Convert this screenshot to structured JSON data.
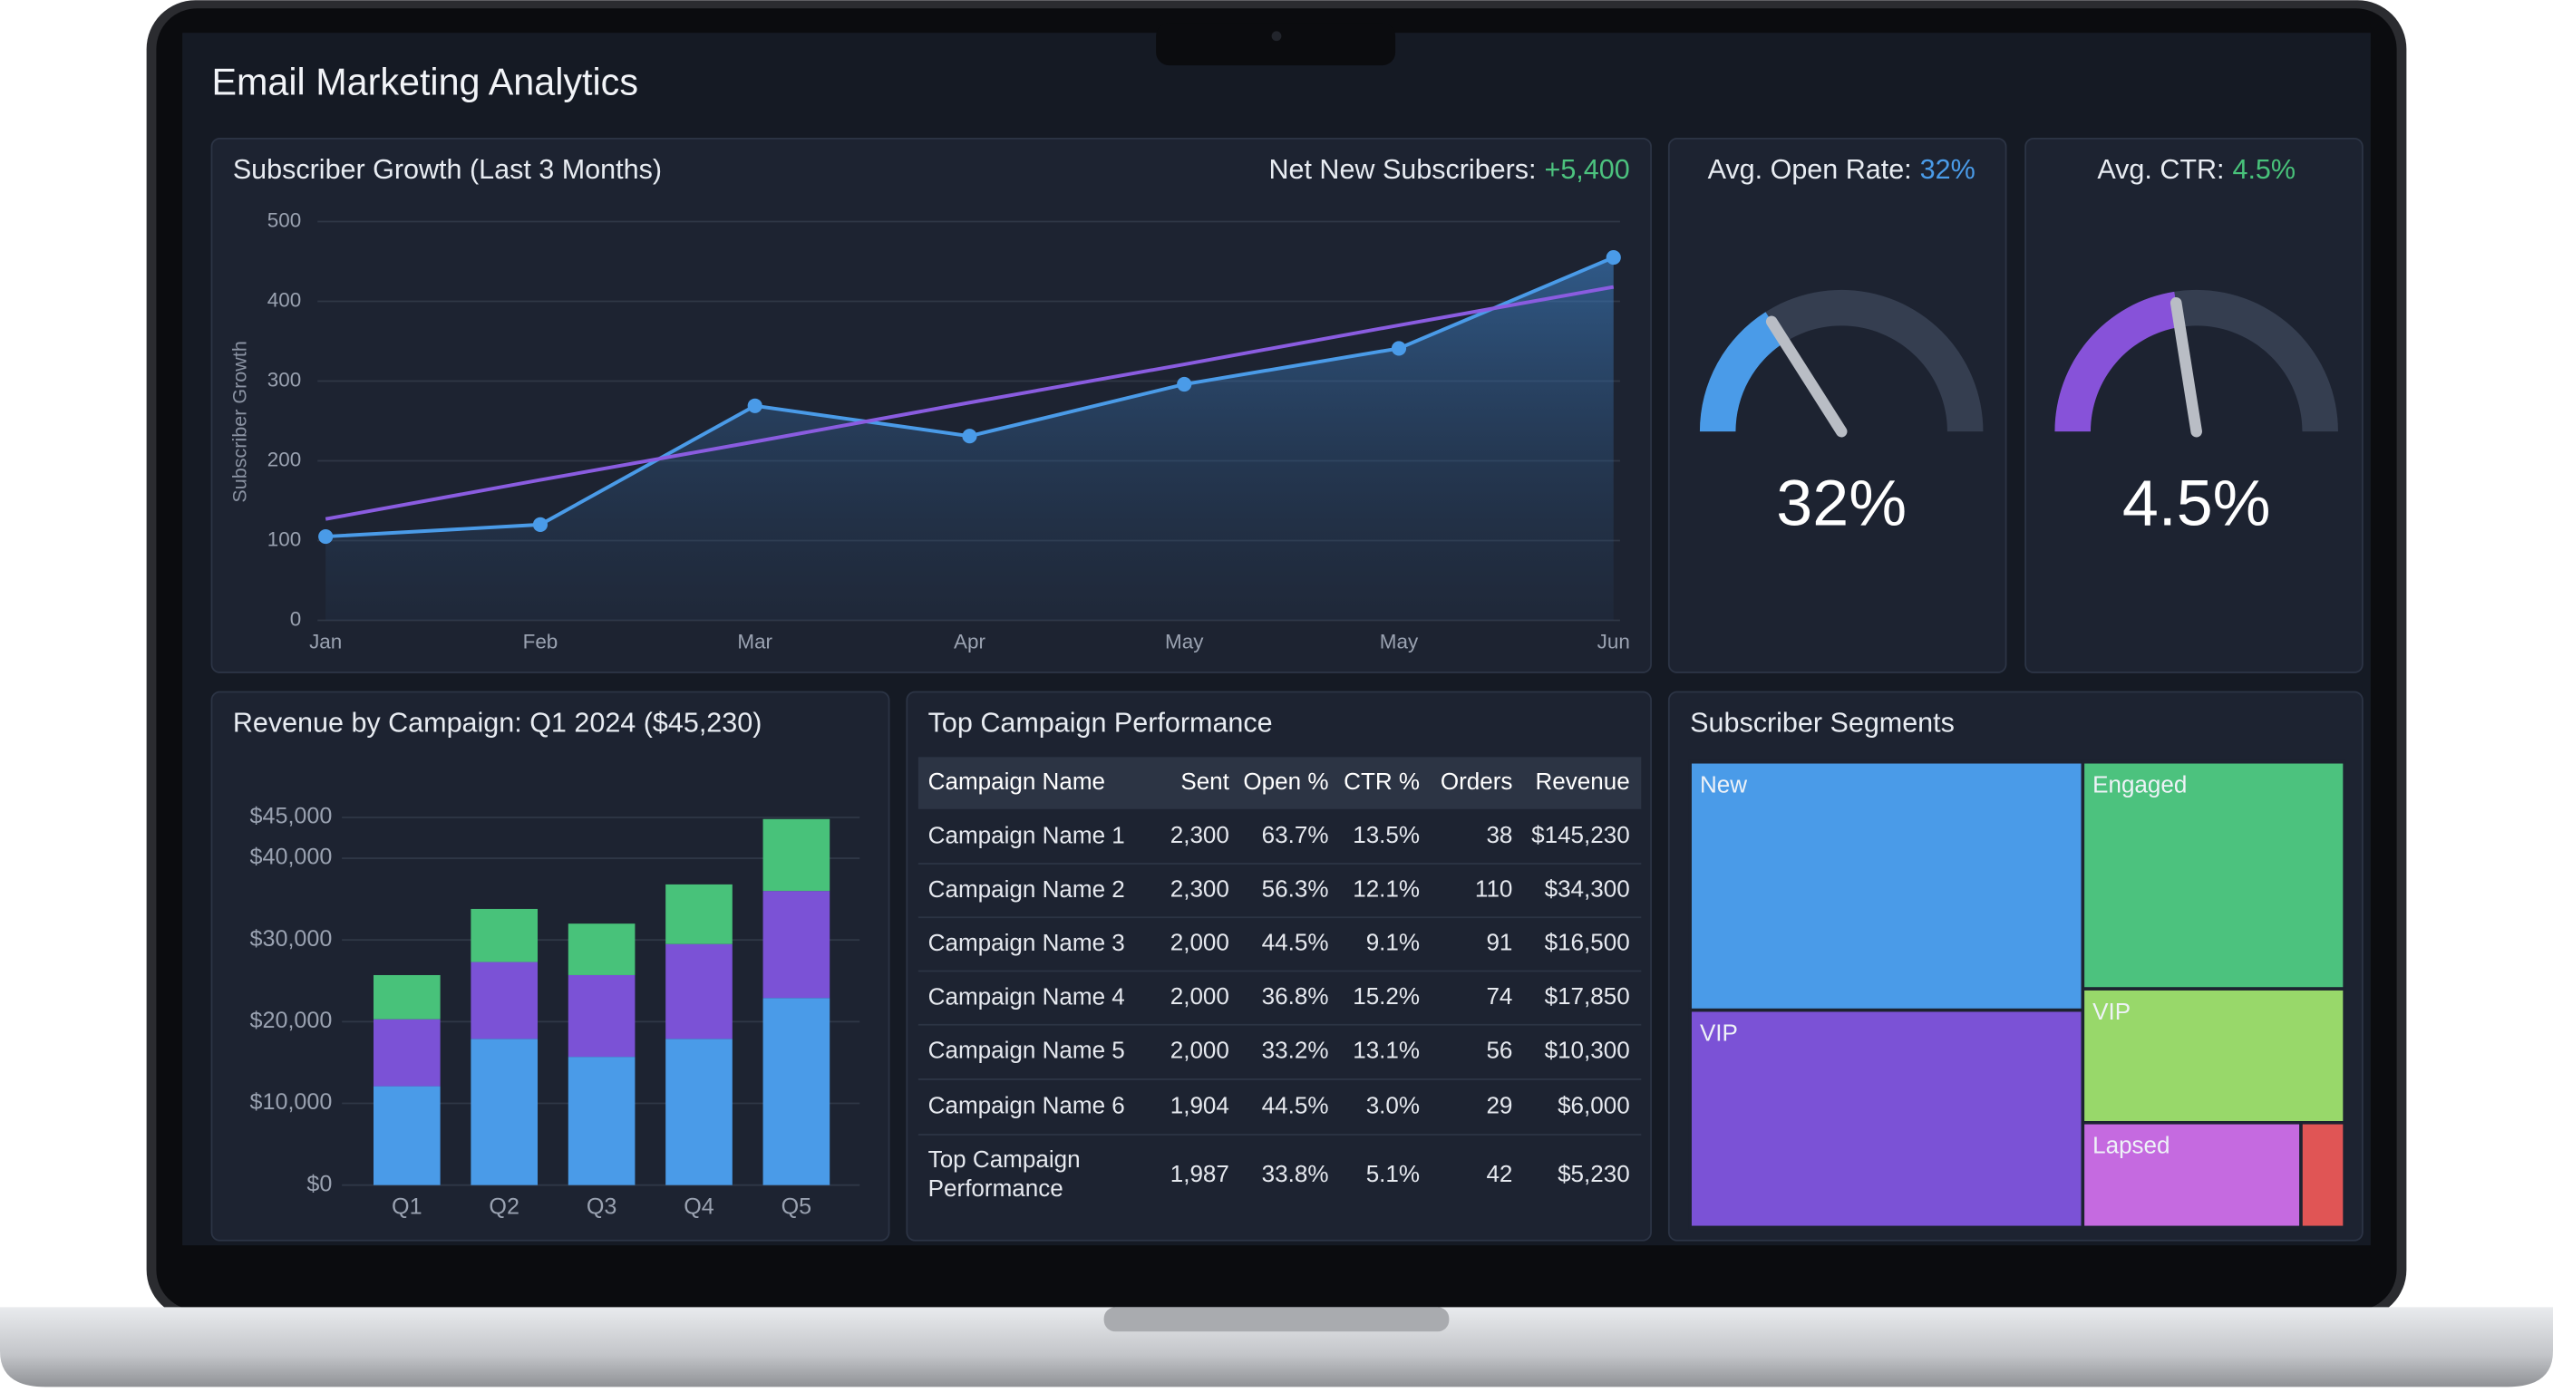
{
  "header": {
    "title": "Email Marketing Analytics"
  },
  "chart_data": [
    {
      "type": "line",
      "title": "Subscriber Growth (Last 3 Months)",
      "annotation": {
        "label": "Net New Subscribers:",
        "value_label": "+5,400"
      },
      "y_label": "Subscriber Growth",
      "categories": [
        "Jan",
        "Feb",
        "Mar",
        "Apr",
        "May",
        "May",
        "Jun"
      ],
      "series": [
        {
          "color": "#4a9be8",
          "values": [
            105,
            120,
            269,
            231,
            296,
            341,
            455
          ]
        },
        {
          "color": "#8a5ce0",
          "values": [
            127,
            176,
            224,
            273,
            321,
            370,
            418
          ]
        }
      ],
      "ylim": [
        0,
        500
      ],
      "yticks": [
        0,
        100,
        200,
        300,
        400,
        500
      ],
      "grid": true
    },
    {
      "type": "gauge",
      "title": "Avg. Open Rate:",
      "value": 32,
      "value_label": "32%",
      "lim": [
        0,
        100
      ],
      "color": "#4a9be8",
      "label_color": "#4a9be8"
    },
    {
      "type": "gauge",
      "title": "Avg. CTR:",
      "value": 4.5,
      "value_label": "4.5%",
      "lim": [
        0,
        10
      ],
      "color": "#8752d9",
      "label_color": "#48c27a"
    },
    {
      "type": "bar",
      "stacked": true,
      "title": "Revenue by Campaign: Q1 2024 ($45,230)",
      "categories": [
        "Q1",
        "Q2",
        "Q3",
        "Q4",
        "Q5"
      ],
      "series": [
        {
          "color": "#4a9be8",
          "values": [
            12100,
            17900,
            15700,
            17900,
            22900
          ]
        },
        {
          "color": "#7b52d6",
          "values": [
            8200,
            9400,
            10000,
            11600,
            13100
          ]
        },
        {
          "color": "#48c27a",
          "values": [
            5400,
            6500,
            6300,
            7300,
            8800
          ]
        }
      ],
      "ylim": [
        0,
        50000
      ],
      "yticks": [
        {
          "value": 0,
          "label": "$0"
        },
        {
          "value": 10000,
          "label": "$10,000"
        },
        {
          "value": 20000,
          "label": "$20,000"
        },
        {
          "value": 30000,
          "label": "$30,000"
        },
        {
          "value": 40000,
          "label": "$40,000"
        },
        {
          "value": 45000,
          "label": "$45,000"
        }
      ],
      "grid": true
    },
    {
      "type": "treemap",
      "title": "Subscriber Segments",
      "labels": [
        "New",
        "VIP",
        "Engaged",
        "VIP",
        "Lapsed",
        null
      ],
      "values": [
        32,
        28,
        19.5,
        11.5,
        7.5,
        1.5
      ],
      "colors": [
        "#4a9be8",
        "#7b52d6",
        "#4cc27e",
        "#98d86a",
        "#c56ae0",
        "#e05555"
      ]
    }
  ],
  "table": {
    "title": "Top Campaign Performance",
    "columns": [
      "Campaign Name",
      "Sent",
      "Open %",
      "CTR %",
      "Orders",
      "Revenue"
    ],
    "rows": [
      [
        "Campaign Name 1",
        "2,300",
        "63.7%",
        "13.5%",
        "38",
        "$145,230"
      ],
      [
        "Campaign Name 2",
        "2,300",
        "56.3%",
        "12.1%",
        "110",
        "$34,300"
      ],
      [
        "Campaign Name 3",
        "2,000",
        "44.5%",
        "9.1%",
        "91",
        "$16,500"
      ],
      [
        "Campaign Name 4",
        "2,000",
        "36.8%",
        "15.2%",
        "74",
        "$17,850"
      ],
      [
        "Campaign Name 5",
        "2,000",
        "33.2%",
        "13.1%",
        "56",
        "$10,300"
      ],
      [
        "Campaign Name 6",
        "1,904",
        "44.5%",
        "3.0%",
        "29",
        "$6,000"
      ],
      [
        "Top Campaign Performance",
        "1,987",
        "33.8%",
        "5.1%",
        "42",
        "$5,230"
      ]
    ]
  }
}
